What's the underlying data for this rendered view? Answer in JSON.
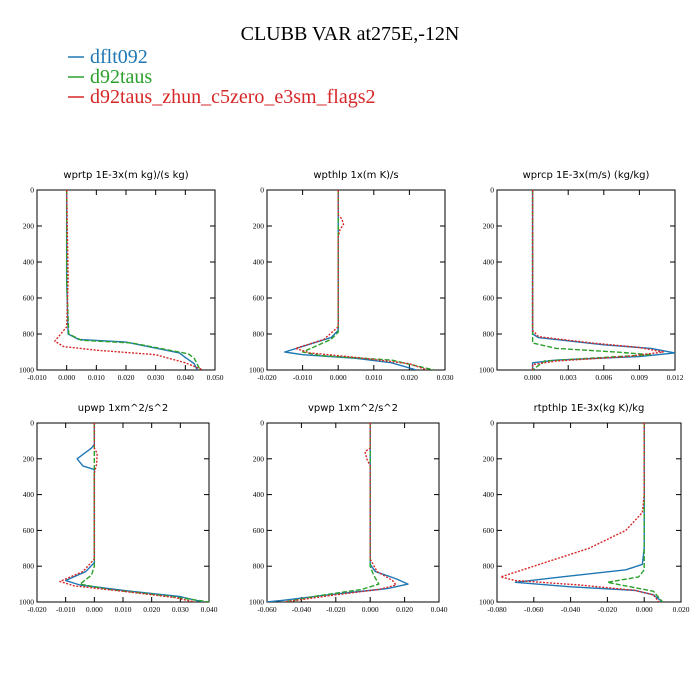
{
  "chart_data": {
    "type": "line",
    "title": "CLUBB VAR at275E,-12N",
    "legend": {
      "placement": "top-left",
      "entries": [
        {
          "name": "dflt092",
          "color": "#1f77b4"
        },
        {
          "name": "d92taus",
          "color": "#2ca02c"
        },
        {
          "name": "d92taus_zhun_c5zero_e3sm_flags2",
          "color": "#d62728"
        }
      ]
    },
    "y_axis": {
      "ylim": [
        1000,
        0
      ],
      "ticks": [
        0,
        200,
        400,
        600,
        800,
        1000
      ],
      "inverted": true
    },
    "panels": [
      {
        "title": "wprtp  1E-3x(m kg)/(s kg)",
        "xlim": [
          -0.01,
          0.05
        ],
        "xticks": [
          -0.01,
          0.0,
          0.01,
          0.02,
          0.03,
          0.04,
          0.05
        ],
        "xtick_labels": [
          "-0.010",
          "0.000",
          "0.010",
          "0.020",
          "0.030",
          "0.040",
          "0.050"
        ],
        "series": [
          {
            "name": "dflt092",
            "points": [
              [
                0.0,
                0
              ],
              [
                0.0,
                500
              ],
              [
                0.0005,
                800
              ],
              [
                0.004,
                830
              ],
              [
                0.02,
                845
              ],
              [
                0.038,
                905
              ],
              [
                0.04,
                930
              ],
              [
                0.043,
                965
              ],
              [
                0.044,
                1000
              ]
            ]
          },
          {
            "name": "d92taus",
            "points": [
              [
                0.0,
                0
              ],
              [
                0.0,
                500
              ],
              [
                0.0007,
                800
              ],
              [
                0.005,
                835
              ],
              [
                0.022,
                850
              ],
              [
                0.041,
                910
              ],
              [
                0.043,
                935
              ],
              [
                0.045,
                1000
              ]
            ]
          },
          {
            "name": "d92taus_zhun_c5zero_e3sm_flags2",
            "points": [
              [
                0.0,
                0
              ],
              [
                0.0005,
                500
              ],
              [
                0.0,
                760
              ],
              [
                -0.004,
                840
              ],
              [
                -0.001,
                870
              ],
              [
                0.01,
                890
              ],
              [
                0.03,
                915
              ],
              [
                0.04,
                960
              ],
              [
                0.046,
                1000
              ]
            ]
          }
        ]
      },
      {
        "title": "wpthlp  1x(m K)/s",
        "xlim": [
          -0.02,
          0.03
        ],
        "xticks": [
          -0.02,
          -0.01,
          0.0,
          0.01,
          0.02,
          0.03
        ],
        "xtick_labels": [
          "-0.020",
          "-0.010",
          "0.000",
          "0.010",
          "0.020",
          "0.030"
        ],
        "series": [
          {
            "name": "dflt092",
            "points": [
              [
                0.0,
                0
              ],
              [
                0.0,
                500
              ],
              [
                0.0,
                780
              ],
              [
                -0.002,
                820
              ],
              [
                -0.015,
                900
              ],
              [
                -0.01,
                915
              ],
              [
                0.005,
                935
              ],
              [
                0.015,
                960
              ],
              [
                0.022,
                1000
              ]
            ]
          },
          {
            "name": "d92taus",
            "points": [
              [
                0.0,
                0
              ],
              [
                0.0,
                500
              ],
              [
                0.0,
                790
              ],
              [
                -0.002,
                830
              ],
              [
                -0.01,
                900
              ],
              [
                -0.005,
                920
              ],
              [
                0.015,
                945
              ],
              [
                0.027,
                1000
              ]
            ]
          },
          {
            "name": "d92taus_zhun_c5zero_e3sm_flags2",
            "points": [
              [
                0.0,
                0
              ],
              [
                0.0,
                140
              ],
              [
                0.001,
                160
              ],
              [
                0.0015,
                190
              ],
              [
                0.0005,
                220
              ],
              [
                0.0,
                260
              ],
              [
                0.0,
                500
              ],
              [
                0.0,
                760
              ],
              [
                -0.004,
                830
              ],
              [
                -0.012,
                880
              ],
              [
                -0.008,
                905
              ],
              [
                0.005,
                930
              ],
              [
                0.02,
                965
              ],
              [
                0.025,
                1000
              ]
            ]
          }
        ]
      },
      {
        "title": "wprcp  1E-3x(m/s) (kg/kg)",
        "xlim": [
          -0.003,
          0.012
        ],
        "xticks": [
          0.0,
          0.003,
          0.006,
          0.009,
          0.012
        ],
        "xtick_labels": [
          "0.000",
          "0.003",
          "0.006",
          "0.009",
          "0.012"
        ],
        "series": [
          {
            "name": "dflt092",
            "points": [
              [
                0.0,
                0
              ],
              [
                0.0,
                800
              ],
              [
                0.0005,
                820
              ],
              [
                0.006,
                860
              ],
              [
                0.01,
                880
              ],
              [
                0.012,
                905
              ],
              [
                0.009,
                925
              ],
              [
                0.002,
                945
              ],
              [
                0.0,
                960
              ],
              [
                0.0,
                1000
              ]
            ]
          },
          {
            "name": "d92taus",
            "points": [
              [
                0.0,
                0
              ],
              [
                0.0,
                800
              ],
              [
                0.0,
                850
              ],
              [
                0.002,
                880
              ],
              [
                0.007,
                900
              ],
              [
                0.01,
                915
              ],
              [
                0.006,
                930
              ],
              [
                0.001,
                950
              ],
              [
                0.0,
                1000
              ]
            ]
          },
          {
            "name": "d92taus_zhun_c5zero_e3sm_flags2",
            "points": [
              [
                0.0,
                0
              ],
              [
                0.0,
                780
              ],
              [
                0.0005,
                815
              ],
              [
                0.005,
                850
              ],
              [
                0.009,
                875
              ],
              [
                0.011,
                900
              ],
              [
                0.008,
                925
              ],
              [
                0.002,
                950
              ],
              [
                0.0,
                970
              ],
              [
                0.0,
                1000
              ]
            ]
          }
        ]
      },
      {
        "title": "upwp  1xm^2/s^2",
        "xlim": [
          -0.02,
          0.04
        ],
        "xticks": [
          -0.02,
          -0.01,
          0.0,
          0.01,
          0.02,
          0.03,
          0.04
        ],
        "xtick_labels": [
          "-0.020",
          "-0.010",
          "0.000",
          "0.010",
          "0.020",
          "0.030",
          "0.040"
        ],
        "series": [
          {
            "name": "dflt092",
            "points": [
              [
                0.0,
                0
              ],
              [
                0.0,
                120
              ],
              [
                -0.001,
                140
              ],
              [
                -0.006,
                200
              ],
              [
                -0.004,
                240
              ],
              [
                0.0,
                260
              ],
              [
                0.0,
                500
              ],
              [
                0.0,
                780
              ],
              [
                -0.003,
                830
              ],
              [
                -0.01,
                880
              ],
              [
                -0.005,
                905
              ],
              [
                0.01,
                935
              ],
              [
                0.03,
                970
              ],
              [
                0.038,
                1000
              ]
            ]
          },
          {
            "name": "d92taus",
            "points": [
              [
                0.0,
                0
              ],
              [
                0.0,
                500
              ],
              [
                0.0,
                800
              ],
              [
                -0.001,
                850
              ],
              [
                -0.005,
                900
              ],
              [
                0.005,
                930
              ],
              [
                0.025,
                965
              ],
              [
                0.04,
                1000
              ]
            ]
          },
          {
            "name": "d92taus_zhun_c5zero_e3sm_flags2",
            "points": [
              [
                0.0,
                0
              ],
              [
                0.0,
                140
              ],
              [
                0.001,
                170
              ],
              [
                0.0008,
                230
              ],
              [
                0.0,
                280
              ],
              [
                0.0,
                500
              ],
              [
                0.0,
                760
              ],
              [
                -0.004,
                830
              ],
              [
                -0.012,
                885
              ],
              [
                -0.007,
                910
              ],
              [
                0.01,
                940
              ],
              [
                0.028,
                975
              ],
              [
                0.035,
                1000
              ]
            ]
          }
        ]
      },
      {
        "title": "vpwp  1xm^2/s^2",
        "xlim": [
          -0.06,
          0.04
        ],
        "xticks": [
          -0.06,
          -0.04,
          -0.02,
          0.0,
          0.02,
          0.04
        ],
        "xtick_labels": [
          "-0.060",
          "-0.040",
          "-0.020",
          "0.000",
          "0.020",
          "0.040"
        ],
        "series": [
          {
            "name": "dflt092",
            "points": [
              [
                0.0,
                0
              ],
              [
                0.0,
                500
              ],
              [
                0.0,
                790
              ],
              [
                0.003,
                830
              ],
              [
                0.015,
                870
              ],
              [
                0.022,
                900
              ],
              [
                0.01,
                925
              ],
              [
                -0.02,
                955
              ],
              [
                -0.05,
                990
              ],
              [
                -0.06,
                1000
              ]
            ]
          },
          {
            "name": "d92taus",
            "points": [
              [
                0.0,
                0
              ],
              [
                0.0,
                500
              ],
              [
                0.0,
                800
              ],
              [
                0.002,
                850
              ],
              [
                0.005,
                900
              ],
              [
                -0.005,
                930
              ],
              [
                -0.03,
                965
              ],
              [
                -0.05,
                1000
              ]
            ]
          },
          {
            "name": "d92taus_zhun_c5zero_e3sm_flags2",
            "points": [
              [
                0.0,
                0
              ],
              [
                0.0,
                140
              ],
              [
                -0.003,
                160
              ],
              [
                -0.002,
                200
              ],
              [
                0.0,
                240
              ],
              [
                0.0,
                500
              ],
              [
                0.0,
                760
              ],
              [
                0.004,
                830
              ],
              [
                0.013,
                880
              ],
              [
                0.015,
                905
              ],
              [
                0.005,
                930
              ],
              [
                -0.02,
                960
              ],
              [
                -0.05,
                1000
              ]
            ]
          }
        ]
      },
      {
        "title": "rtpthlp  1E-3x(kg K)/kg",
        "xlim": [
          -0.08,
          0.02
        ],
        "xticks": [
          -0.08,
          -0.06,
          -0.04,
          -0.02,
          0.0,
          0.02
        ],
        "xtick_labels": [
          "-0.080",
          "-0.060",
          "-0.040",
          "-0.020",
          "0.000",
          "0.020"
        ],
        "series": [
          {
            "name": "dflt092",
            "points": [
              [
                0.0,
                0
              ],
              [
                0.0,
                700
              ],
              [
                -0.001,
                790
              ],
              [
                -0.01,
                820
              ],
              [
                -0.045,
                860
              ],
              [
                -0.07,
                890
              ],
              [
                -0.04,
                915
              ],
              [
                -0.005,
                935
              ],
              [
                0.005,
                960
              ],
              [
                0.01,
                1000
              ]
            ]
          },
          {
            "name": "d92taus",
            "points": [
              [
                0.0,
                0
              ],
              [
                0.0,
                700
              ],
              [
                0.0,
                820
              ],
              [
                -0.003,
                860
              ],
              [
                -0.02,
                890
              ],
              [
                -0.01,
                910
              ],
              [
                0.005,
                940
              ],
              [
                0.01,
                1000
              ]
            ]
          },
          {
            "name": "d92taus_zhun_c5zero_e3sm_flags2",
            "points": [
              [
                0.0,
                0
              ],
              [
                0.0,
                400
              ],
              [
                -0.001,
                500
              ],
              [
                -0.01,
                600
              ],
              [
                -0.03,
                700
              ],
              [
                -0.06,
                800
              ],
              [
                -0.078,
                860
              ],
              [
                -0.07,
                880
              ],
              [
                -0.035,
                905
              ],
              [
                -0.005,
                935
              ],
              [
                0.005,
                960
              ],
              [
                0.008,
                1000
              ]
            ]
          }
        ]
      }
    ]
  },
  "styles": {
    "series_dash": {
      "dflt092": "solid",
      "d92taus": "dashed",
      "d92taus_zhun_c5zero_e3sm_flags2": "dotted"
    }
  }
}
